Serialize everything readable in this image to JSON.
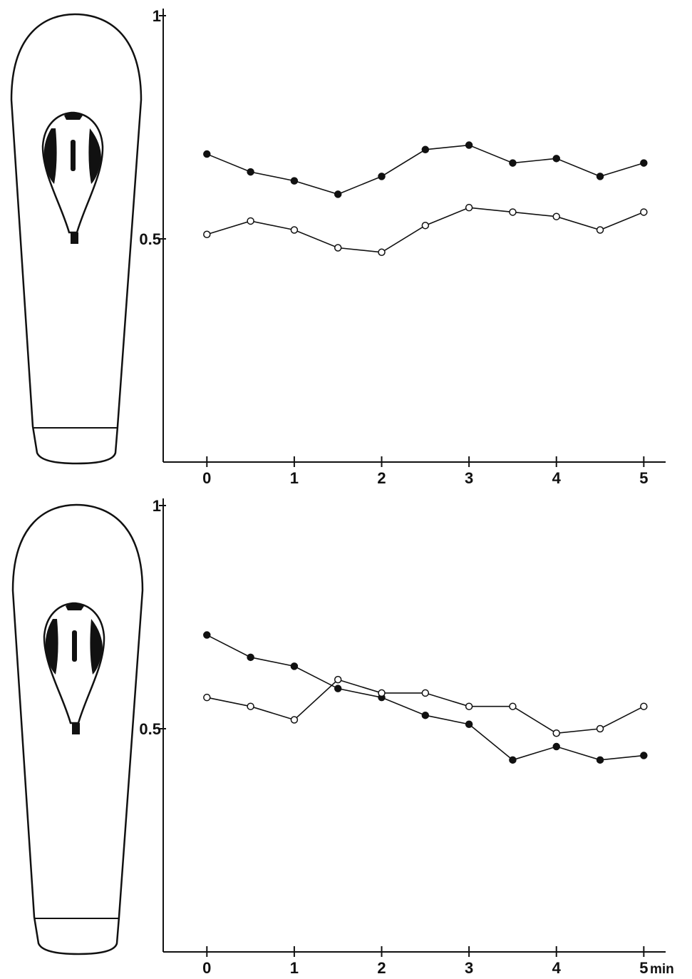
{
  "chart_data": [
    {
      "type": "line",
      "x": [
        0,
        0.5,
        1,
        1.5,
        2,
        2.5,
        3,
        3.5,
        4,
        4.5,
        5
      ],
      "xlim": [
        -0.5,
        5.25
      ],
      "xticks": [
        0,
        1,
        2,
        3,
        4,
        5
      ],
      "ylim": [
        0,
        1
      ],
      "yticks": [
        0.5,
        1
      ],
      "series": [
        {
          "marker": "filled",
          "color": "#111111",
          "values": [
            0.69,
            0.65,
            0.63,
            0.6,
            0.64,
            0.7,
            0.71,
            0.67,
            0.68,
            0.64,
            0.67
          ]
        },
        {
          "marker": "open",
          "color": "#111111",
          "values": [
            0.51,
            0.54,
            0.52,
            0.48,
            0.47,
            0.53,
            0.57,
            0.56,
            0.55,
            0.52,
            0.56
          ]
        }
      ]
    },
    {
      "type": "line",
      "x": [
        0,
        0.5,
        1,
        1.5,
        2,
        2.5,
        3,
        3.5,
        4,
        4.5,
        5
      ],
      "xlim": [
        -0.5,
        5.25
      ],
      "xticks": [
        0,
        1,
        2,
        3,
        4,
        5
      ],
      "xlabel": "min",
      "ylim": [
        0,
        1
      ],
      "yticks": [
        0.5,
        1
      ],
      "series": [
        {
          "marker": "filled",
          "color": "#111111",
          "values": [
            0.71,
            0.66,
            0.64,
            0.59,
            0.57,
            0.53,
            0.51,
            0.43,
            0.46,
            0.43,
            0.44
          ]
        },
        {
          "marker": "open",
          "color": "#111111",
          "values": [
            0.57,
            0.55,
            0.52,
            0.61,
            0.58,
            0.58,
            0.55,
            0.55,
            0.49,
            0.5,
            0.55
          ]
        }
      ]
    }
  ]
}
